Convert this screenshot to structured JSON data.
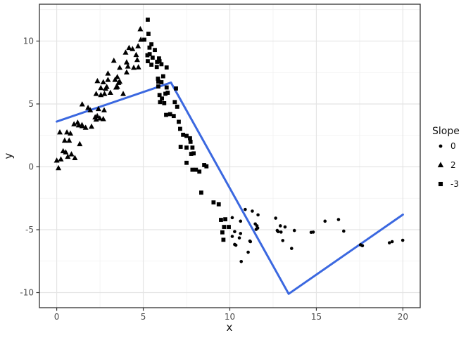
{
  "chart_data": {
    "type": "scatter",
    "title": "",
    "xlabel": "x",
    "ylabel": "y",
    "xlim": [
      -1,
      21
    ],
    "ylim": [
      -11.2,
      12.93
    ],
    "x_ticks": {
      "values": [
        0,
        5,
        10,
        15,
        20
      ],
      "labels": [
        "0",
        "5",
        "10",
        "15",
        "20"
      ]
    },
    "y_ticks": {
      "values": [
        -10,
        -5,
        0,
        5,
        10
      ],
      "labels": [
        "-10",
        "-5",
        "0",
        "5",
        "10"
      ]
    },
    "x_minor": [
      2.5,
      7.5,
      12.5,
      17.5
    ],
    "y_minor": [
      -7.5,
      -2.5,
      2.5,
      7.5,
      12.5
    ],
    "grid": "major+minor",
    "style": {
      "background": "#FFFFFF",
      "panel_border_color": "#333333",
      "grid_major_color": "#E4E4E4",
      "grid_minor_color": "#F1F1F1",
      "tick_color": "#333333",
      "point_color": "#000000"
    },
    "legend": {
      "title": "Slope",
      "position": "right",
      "items": [
        {
          "label": "0",
          "shape": "circle"
        },
        {
          "label": "2",
          "shape": "triangle"
        },
        {
          "label": "-3",
          "shape": "square"
        }
      ]
    },
    "series": [
      {
        "name": "0",
        "shape": "circle",
        "points": [
          [
            10.14,
            -4.04
          ],
          [
            10.62,
            -4.32
          ],
          [
            10.89,
            -3.39
          ],
          [
            11.3,
            -3.52
          ],
          [
            11.63,
            -3.82
          ],
          [
            10.28,
            -5.15
          ],
          [
            10.62,
            -5.3
          ],
          [
            10.14,
            -5.53
          ],
          [
            10.35,
            -6.23
          ],
          [
            10.28,
            -6.17
          ],
          [
            10.55,
            -5.65
          ],
          [
            10.66,
            -7.53
          ],
          [
            11.06,
            -6.79
          ],
          [
            11.16,
            -5.9
          ],
          [
            11.19,
            -5.95
          ],
          [
            11.47,
            -4.54
          ],
          [
            11.52,
            -4.97
          ],
          [
            11.57,
            -4.69
          ],
          [
            11.61,
            -4.87
          ],
          [
            12.65,
            -4.08
          ],
          [
            12.79,
            -5.15
          ],
          [
            12.92,
            -4.69
          ],
          [
            12.74,
            -5.06
          ],
          [
            12.96,
            -5.19
          ],
          [
            13.06,
            -5.86
          ],
          [
            13.19,
            -4.78
          ],
          [
            13.57,
            -6.49
          ],
          [
            13.73,
            -5.06
          ],
          [
            14.7,
            -5.21
          ],
          [
            14.82,
            -5.19
          ],
          [
            15.5,
            -4.32
          ],
          [
            16.28,
            -4.19
          ],
          [
            16.58,
            -5.11
          ],
          [
            17.55,
            -6.2
          ],
          [
            17.66,
            -6.27
          ],
          [
            19.22,
            -6.04
          ],
          [
            19.38,
            -5.95
          ],
          [
            19.99,
            -5.84
          ]
        ]
      },
      {
        "name": "2",
        "shape": "triangle",
        "points": [
          [
            0.1,
            -0.1
          ],
          [
            0.0,
            0.5
          ],
          [
            0.24,
            0.6
          ],
          [
            0.37,
            1.25
          ],
          [
            0.52,
            1.16
          ],
          [
            0.64,
            0.8
          ],
          [
            0.85,
            1.0
          ],
          [
            1.05,
            0.7
          ],
          [
            0.46,
            2.09
          ],
          [
            0.72,
            2.09
          ],
          [
            0.59,
            2.74
          ],
          [
            0.18,
            2.74
          ],
          [
            0.79,
            2.65
          ],
          [
            1.33,
            1.81
          ],
          [
            1.0,
            3.39
          ],
          [
            1.27,
            3.3
          ],
          [
            1.47,
            3.24
          ],
          [
            1.67,
            3.11
          ],
          [
            1.21,
            3.52
          ],
          [
            1.46,
            3.33
          ],
          [
            2.01,
            3.2
          ],
          [
            2.22,
            3.94
          ],
          [
            2.28,
            3.76
          ],
          [
            2.49,
            3.85
          ],
          [
            2.69,
            3.8
          ],
          [
            1.47,
            4.97
          ],
          [
            1.81,
            4.69
          ],
          [
            1.94,
            4.5
          ],
          [
            2.34,
            4.04
          ],
          [
            2.41,
            4.6
          ],
          [
            2.74,
            4.5
          ],
          [
            2.28,
            5.8
          ],
          [
            2.55,
            5.71
          ],
          [
            2.76,
            5.8
          ],
          [
            3.1,
            5.89
          ],
          [
            2.55,
            6.27
          ],
          [
            2.89,
            6.36
          ],
          [
            3.5,
            6.36
          ],
          [
            2.35,
            6.82
          ],
          [
            2.69,
            6.73
          ],
          [
            2.96,
            6.92
          ],
          [
            3.37,
            6.92
          ],
          [
            3.64,
            6.77
          ],
          [
            3.84,
            5.8
          ],
          [
            2.82,
            6.21
          ],
          [
            3.43,
            6.31
          ],
          [
            3.57,
            6.68
          ],
          [
            2.96,
            7.42
          ],
          [
            3.5,
            7.14
          ],
          [
            4.04,
            7.51
          ],
          [
            4.11,
            7.98
          ],
          [
            4.45,
            7.88
          ],
          [
            4.72,
            7.92
          ],
          [
            3.3,
            8.44
          ],
          [
            3.64,
            7.88
          ],
          [
            4.04,
            8.31
          ],
          [
            4.65,
            8.5
          ],
          [
            4.38,
            9.37
          ],
          [
            4.18,
            9.46
          ],
          [
            3.98,
            9.09
          ],
          [
            4.59,
            8.9
          ],
          [
            4.7,
            9.59
          ],
          [
            4.86,
            10.11
          ],
          [
            4.83,
            10.95
          ]
        ]
      },
      {
        "name": "-3",
        "shape": "square",
        "points": [
          [
            5.26,
            11.7
          ],
          [
            5.3,
            10.58
          ],
          [
            5.06,
            10.11
          ],
          [
            5.47,
            9.74
          ],
          [
            5.36,
            9.48
          ],
          [
            5.67,
            9.29
          ],
          [
            5.37,
            8.96
          ],
          [
            5.24,
            8.87
          ],
          [
            5.54,
            8.68
          ],
          [
            5.94,
            8.4
          ],
          [
            5.26,
            8.4
          ],
          [
            5.47,
            8.12
          ],
          [
            5.78,
            7.94
          ],
          [
            6.35,
            7.9
          ],
          [
            5.91,
            8.62
          ],
          [
            6.05,
            8.16
          ],
          [
            5.8,
            8.35
          ],
          [
            5.85,
            7.01
          ],
          [
            6.15,
            7.2
          ],
          [
            6.05,
            6.73
          ],
          [
            5.87,
            6.77
          ],
          [
            5.87,
            6.39
          ],
          [
            6.35,
            6.31
          ],
          [
            6.89,
            6.23
          ],
          [
            5.94,
            5.71
          ],
          [
            6.28,
            5.81
          ],
          [
            6.41,
            5.89
          ],
          [
            6.08,
            5.43
          ],
          [
            5.97,
            5.15
          ],
          [
            6.21,
            5.06
          ],
          [
            6.82,
            5.15
          ],
          [
            6.96,
            4.78
          ],
          [
            6.32,
            4.13
          ],
          [
            6.55,
            4.19
          ],
          [
            6.76,
            4.04
          ],
          [
            7.05,
            3.58
          ],
          [
            7.13,
            3.02
          ],
          [
            7.3,
            2.55
          ],
          [
            7.5,
            2.46
          ],
          [
            7.7,
            2.27
          ],
          [
            7.73,
            1.99
          ],
          [
            7.16,
            1.59
          ],
          [
            7.5,
            1.53
          ],
          [
            7.84,
            1.53
          ],
          [
            7.91,
            1.07
          ],
          [
            7.77,
            1.03
          ],
          [
            7.5,
            0.32
          ],
          [
            7.84,
            -0.23
          ],
          [
            8.04,
            -0.23
          ],
          [
            8.24,
            -0.38
          ],
          [
            8.65,
            0.04
          ],
          [
            8.52,
            0.14
          ],
          [
            8.35,
            -2.05
          ],
          [
            9.06,
            -2.83
          ],
          [
            9.36,
            -2.98
          ],
          [
            9.49,
            -4.22
          ],
          [
            9.74,
            -4.17
          ],
          [
            9.67,
            -4.78
          ],
          [
            9.94,
            -4.78
          ],
          [
            9.57,
            -5.21
          ],
          [
            9.63,
            -5.8
          ]
        ]
      }
    ],
    "fit_line": {
      "color": "#3B68E0",
      "width": 3,
      "points": [
        [
          0,
          3.6
        ],
        [
          6.6,
          6.7
        ],
        [
          13.4,
          -10.1
        ],
        [
          20,
          -3.8
        ]
      ]
    }
  }
}
